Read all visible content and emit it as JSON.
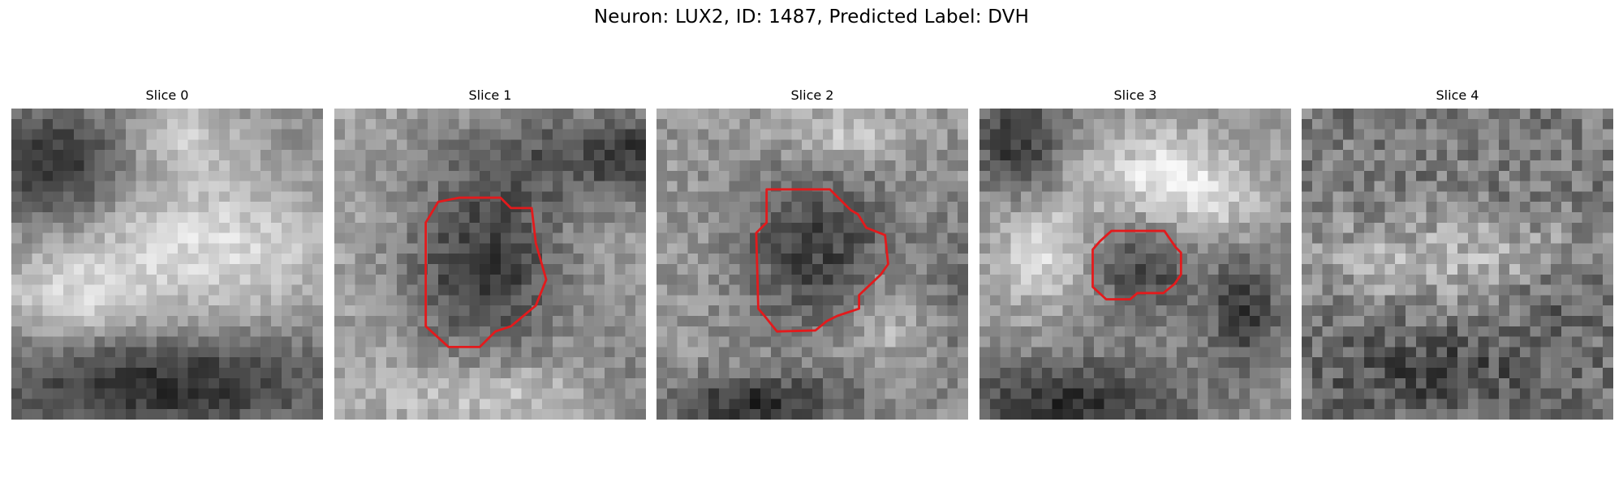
{
  "figure": {
    "title": "Neuron: LUX2, ID: 1487, Predicted Label: DVH"
  },
  "contour_color": "#e31a1c",
  "slices": [
    {
      "label": "Slice 0",
      "has_contour": false,
      "pattern": "dark upper-left blob, bright band across middle, dark bottom band",
      "grid": 30
    },
    {
      "label": "Slice 1",
      "has_contour": true,
      "pattern": "dark cell body centered with bright surrounding ring",
      "grid": 30,
      "contour": [
        [
          10,
          9
        ],
        [
          12,
          8.6
        ],
        [
          16,
          8.6
        ],
        [
          17,
          9.6
        ],
        [
          19,
          9.6
        ],
        [
          19.4,
          13
        ],
        [
          20.4,
          16.5
        ],
        [
          19.4,
          19
        ],
        [
          17,
          21
        ],
        [
          15.5,
          21.5
        ],
        [
          14,
          23
        ],
        [
          11,
          23
        ],
        [
          8.8,
          21
        ],
        [
          8.8,
          11
        ]
      ]
    },
    {
      "label": "Slice 2",
      "has_contour": true,
      "pattern": "dark cell body centered with bright surrounding ring, darker bottom",
      "grid": 30,
      "contour": [
        [
          10.6,
          7.8
        ],
        [
          16.7,
          7.8
        ],
        [
          18.7,
          9.8
        ],
        [
          19.4,
          10.2
        ],
        [
          20.2,
          11.5
        ],
        [
          22,
          12.2
        ],
        [
          22.3,
          15
        ],
        [
          21.6,
          16
        ],
        [
          19.5,
          18
        ],
        [
          19.5,
          19.3
        ],
        [
          17.4,
          20
        ],
        [
          16.4,
          20.5
        ],
        [
          15.3,
          21.4
        ],
        [
          11.6,
          21.5
        ],
        [
          10.4,
          20
        ],
        [
          9.8,
          19.3
        ],
        [
          9.6,
          12
        ],
        [
          10.6,
          11
        ]
      ]
    },
    {
      "label": "Slice 3",
      "has_contour": true,
      "pattern": "small dark region at center surrounded by bright patches, dark bottom left",
      "grid": 30,
      "contour": [
        [
          11.6,
          12.8
        ],
        [
          12.7,
          11.8
        ],
        [
          17.8,
          11.8
        ],
        [
          18.9,
          13.4
        ],
        [
          19.4,
          13.9
        ],
        [
          19.4,
          16
        ],
        [
          18.8,
          16.9
        ],
        [
          17.7,
          17.8
        ],
        [
          15.2,
          17.8
        ],
        [
          14.5,
          18.4
        ],
        [
          12.2,
          18.4
        ],
        [
          10.9,
          17.2
        ],
        [
          10.9,
          13.6
        ]
      ]
    },
    {
      "label": "Slice 4",
      "has_contour": false,
      "pattern": "noisy texture, bright horizontal band across middle",
      "grid": 30
    }
  ]
}
